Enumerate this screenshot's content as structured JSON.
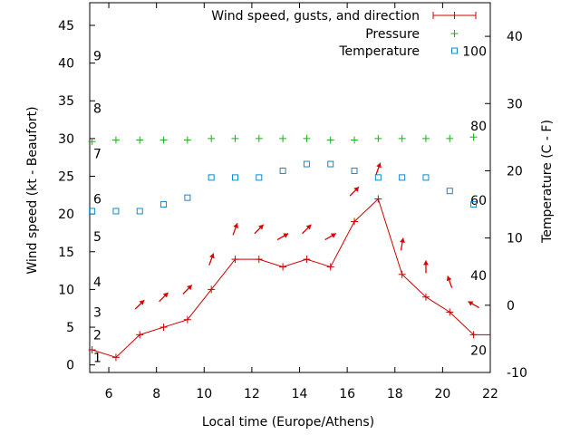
{
  "chart_data": {
    "type": "line",
    "title": "",
    "xlabel": "Local time (Europe/Athens)",
    "ylabel_left": "Wind speed (kt - Beaufort)",
    "ylabel_right": "Temperature (C - F)",
    "xlim": [
      5.2,
      22
    ],
    "ylim_left": [
      -1,
      48
    ],
    "ylim_right": [
      -10,
      45
    ],
    "x_ticks": [
      6,
      8,
      10,
      12,
      14,
      16,
      18,
      20,
      22
    ],
    "y_left_ticks": [
      0,
      5,
      10,
      15,
      20,
      25,
      30,
      35,
      40,
      45
    ],
    "y_right_ticks": [
      -10,
      0,
      10,
      20,
      30,
      40
    ],
    "beaufort_labels": [
      {
        "label": "1",
        "at": 1
      },
      {
        "label": "2",
        "at": 4
      },
      {
        "label": "3",
        "at": 7
      },
      {
        "label": "4",
        "at": 11
      },
      {
        "label": "5",
        "at": 17
      },
      {
        "label": "6",
        "at": 22
      },
      {
        "label": "7",
        "at": 28
      },
      {
        "label": "8",
        "at": 34
      },
      {
        "label": "9",
        "at": 41
      }
    ],
    "fahrenheit_labels": [
      {
        "label": "20",
        "at": -6.7
      },
      {
        "label": "40",
        "at": 4.4
      },
      {
        "label": "60",
        "at": 15.6
      },
      {
        "label": "80",
        "at": 26.7
      },
      {
        "label": "100",
        "at": 37.8
      }
    ],
    "legend": {
      "position": "top-right",
      "entries": [
        "Wind speed, gusts, and direction",
        "Pressure",
        "Temperature"
      ]
    },
    "colors": {
      "wind": "#cc0000",
      "pressure": "#22aa22",
      "temperature": "#1188cc",
      "arrows": "#dd0000"
    },
    "series": [
      {
        "name": "Wind speed, gusts, and direction",
        "axis": "left",
        "x": [
          5.2,
          5.3,
          6.3,
          7.3,
          8.3,
          9.3,
          10.3,
          11.3,
          12.3,
          13.3,
          14.3,
          15.3,
          16.3,
          17.3,
          18.3,
          19.3,
          20.3,
          21.3,
          22
        ],
        "y": [
          2,
          2,
          1,
          4,
          5,
          6,
          10,
          14,
          14,
          13,
          14,
          13,
          19,
          22,
          12,
          9,
          7,
          4,
          4
        ]
      },
      {
        "name": "Pressure",
        "axis": "left",
        "x": [
          5.3,
          6.3,
          7.3,
          8.3,
          9.3,
          10.3,
          11.3,
          12.3,
          13.3,
          14.3,
          15.3,
          16.3,
          17.3,
          18.3,
          19.3,
          20.3,
          21.3
        ],
        "y": [
          29.6,
          29.8,
          29.8,
          29.8,
          29.8,
          30,
          30,
          30,
          30,
          30,
          29.8,
          29.8,
          30,
          30,
          30,
          30,
          30.2
        ]
      },
      {
        "name": "Temperature",
        "axis": "right",
        "x": [
          5.3,
          6.3,
          7.3,
          8.3,
          9.3,
          10.3,
          11.3,
          12.3,
          13.3,
          14.3,
          15.3,
          16.3,
          17.3,
          18.3,
          19.3,
          20.3,
          21.3
        ],
        "y": [
          14,
          14,
          14,
          15,
          16,
          19,
          19,
          19,
          20,
          21,
          21,
          20,
          19,
          19,
          19,
          17,
          15
        ]
      }
    ],
    "wind_arrows": {
      "x": [
        7.3,
        8.3,
        9.3,
        10.3,
        11.3,
        12.3,
        13.3,
        14.3,
        15.3,
        16.3,
        17.3,
        18.3,
        19.3,
        20.3,
        21.3
      ],
      "y": [
        8,
        9,
        10,
        14,
        18,
        18,
        17,
        18,
        17,
        23,
        26,
        16,
        13,
        11,
        8
      ],
      "direction_deg": [
        225,
        225,
        225,
        200,
        200,
        225,
        240,
        225,
        240,
        225,
        200,
        190,
        180,
        160,
        120
      ]
    }
  }
}
